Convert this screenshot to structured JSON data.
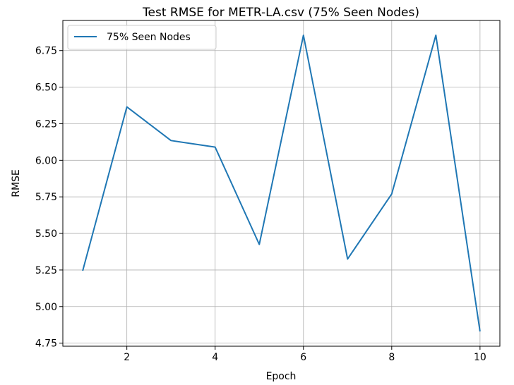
{
  "chart_data": {
    "type": "line",
    "title": "Test RMSE for METR-LA.csv (75% Seen Nodes)",
    "xlabel": "Epoch",
    "ylabel": "RMSE",
    "x": [
      1,
      2,
      3,
      4,
      5,
      6,
      7,
      8,
      9,
      10
    ],
    "series": [
      {
        "name": "75% Seen Nodes",
        "color": "#1f77b4",
        "values": [
          5.245,
          6.365,
          6.135,
          6.09,
          5.425,
          6.855,
          5.325,
          5.77,
          6.855,
          4.83
        ]
      }
    ],
    "xticks": [
      2,
      4,
      6,
      8,
      10
    ],
    "xtick_labels": [
      "2",
      "4",
      "6",
      "8",
      "10"
    ],
    "yticks": [
      4.75,
      5.0,
      5.25,
      5.5,
      5.75,
      6.0,
      6.25,
      6.5,
      6.75
    ],
    "ytick_labels": [
      "4.75",
      "5.00",
      "5.25",
      "5.50",
      "5.75",
      "6.00",
      "6.25",
      "6.50",
      "6.75"
    ],
    "xlim": [
      0.55,
      10.45
    ],
    "ylim": [
      4.729,
      6.956
    ],
    "grid": true,
    "legend_position": "upper left"
  }
}
